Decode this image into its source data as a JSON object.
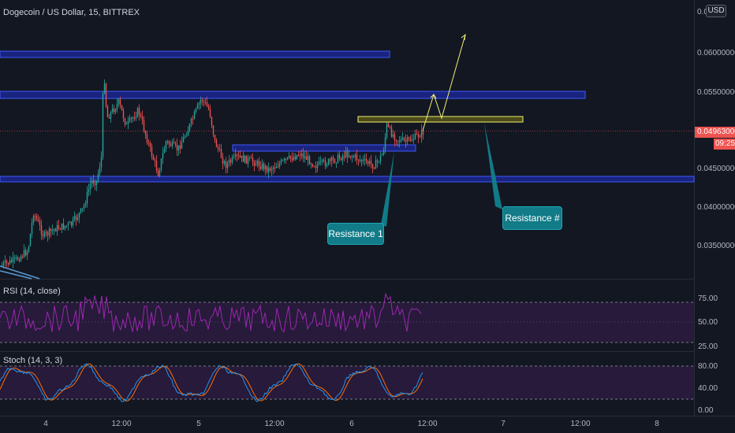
{
  "header": {
    "symbol_title": "Dogecoin / US Dollar, 15, BITTREX",
    "currency_button": "USD"
  },
  "price_axis": {
    "ticks": [
      "0.06000000",
      "0.05500000",
      "0.04500000",
      "0.04000000",
      "0.03500000"
    ],
    "top_partial": "0.0",
    "current_price": "0.04963000",
    "countdown": "09:25"
  },
  "rsi_panel": {
    "legend": "RSI (14, close)",
    "ticks": [
      "75.00",
      "50.00",
      "25.00"
    ],
    "color": "#9c27b0"
  },
  "stoch_panel": {
    "legend": "Stoch (14, 3, 3)",
    "ticks": [
      "80.00",
      "40.00",
      "0.00"
    ],
    "k_color": "#2196f3",
    "d_color": "#ff6d00"
  },
  "time_axis": {
    "labels": [
      "4",
      "12:00",
      "5",
      "12:00",
      "6",
      "12:00",
      "7",
      "12:00",
      "8"
    ]
  },
  "annotations": {
    "callout_1": "Resistance 1",
    "callout_2": "Resistance #"
  },
  "colors": {
    "background": "#131722",
    "up_candle": "#26a69a",
    "down_candle": "#ef5350",
    "zone_blue": "#1a237e",
    "zone_yellow": "#f0f070",
    "callout_teal": "#117b88"
  }
}
